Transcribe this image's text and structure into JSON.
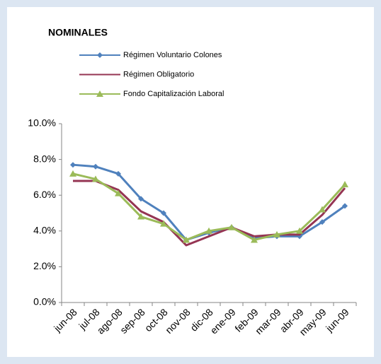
{
  "chart_data": {
    "type": "line",
    "title": "NOMINALES",
    "categories": [
      "jun-08",
      "jul-08",
      "ago-08",
      "sep-08",
      "oct-08",
      "nov-08",
      "dic-08",
      "ene-09",
      "feb-09",
      "mar-09",
      "abr-09",
      "may-09",
      "jun-09"
    ],
    "series": [
      {
        "name": "Régimen Voluntario Colones",
        "color": "#4f81bd",
        "marker": "diamond",
        "values": [
          7.7,
          7.6,
          7.2,
          5.8,
          5.0,
          3.5,
          3.9,
          4.2,
          3.6,
          3.7,
          3.7,
          4.5,
          5.4
        ]
      },
      {
        "name": "Régimen Obligatorio",
        "color": "#953553",
        "marker": "none",
        "values": [
          6.8,
          6.8,
          6.3,
          5.1,
          4.5,
          3.2,
          3.7,
          4.2,
          3.7,
          3.8,
          3.8,
          4.9,
          6.4
        ]
      },
      {
        "name": "Fondo Capitalización  Laboral",
        "color": "#9bbb59",
        "marker": "triangle",
        "values": [
          7.2,
          6.9,
          6.1,
          4.8,
          4.4,
          3.5,
          4.0,
          4.2,
          3.5,
          3.8,
          4.0,
          5.2,
          6.6
        ]
      }
    ],
    "ylim": [
      0,
      10
    ],
    "yticks": [
      {
        "value": 0,
        "label": "0.0%"
      },
      {
        "value": 2,
        "label": "2.0%"
      },
      {
        "value": 4,
        "label": "4.0%"
      },
      {
        "value": 6,
        "label": "6.0%"
      },
      {
        "value": 8,
        "label": "8.0%"
      },
      {
        "value": 10,
        "label": "10.0%"
      }
    ],
    "grid": false
  }
}
